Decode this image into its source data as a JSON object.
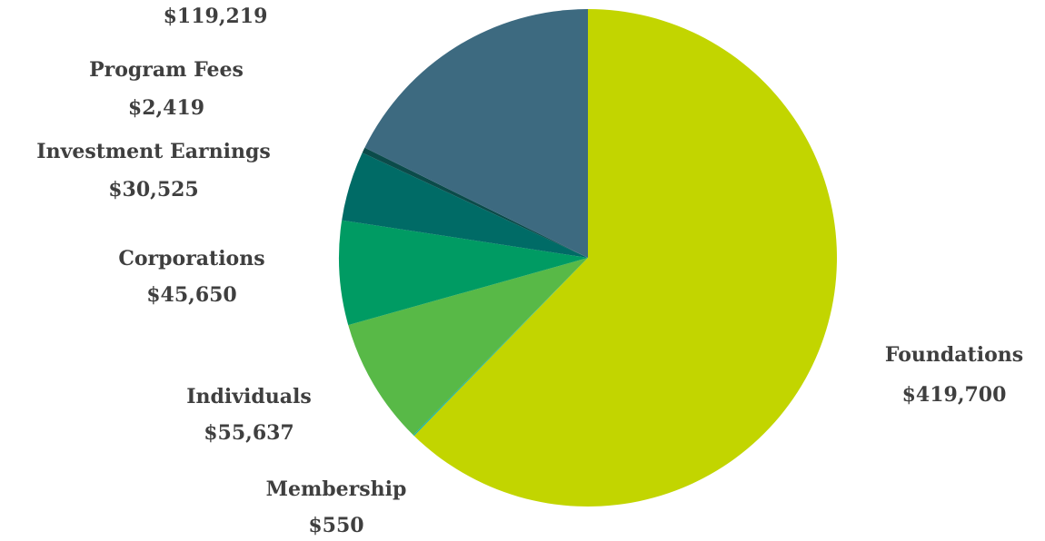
{
  "chart_data": {
    "type": "pie",
    "title": "",
    "slices": [
      {
        "label": "Foundations",
        "value_label": "$419,700",
        "value": 419700,
        "color": "#c2d500"
      },
      {
        "label": "Membership",
        "value_label": "$550",
        "value": 550,
        "color": "#1fb4a4"
      },
      {
        "label": "Individuals",
        "value_label": "$55,637",
        "value": 55637,
        "color": "#58b947"
      },
      {
        "label": "Corporations",
        "value_label": "$45,650",
        "value": 45650,
        "color": "#009b63"
      },
      {
        "label": "Investment Earnings",
        "value_label": "$30,525",
        "value": 30525,
        "color": "#006b66"
      },
      {
        "label": "Program Fees",
        "value_label": "$2,419",
        "value": 2419,
        "color": "#0b4b4a"
      },
      {
        "label": "",
        "value_label": "$119,219",
        "value": 119219,
        "color": "#3d6a80"
      }
    ],
    "start_angle": "12 o'clock",
    "direction": "clockwise"
  }
}
